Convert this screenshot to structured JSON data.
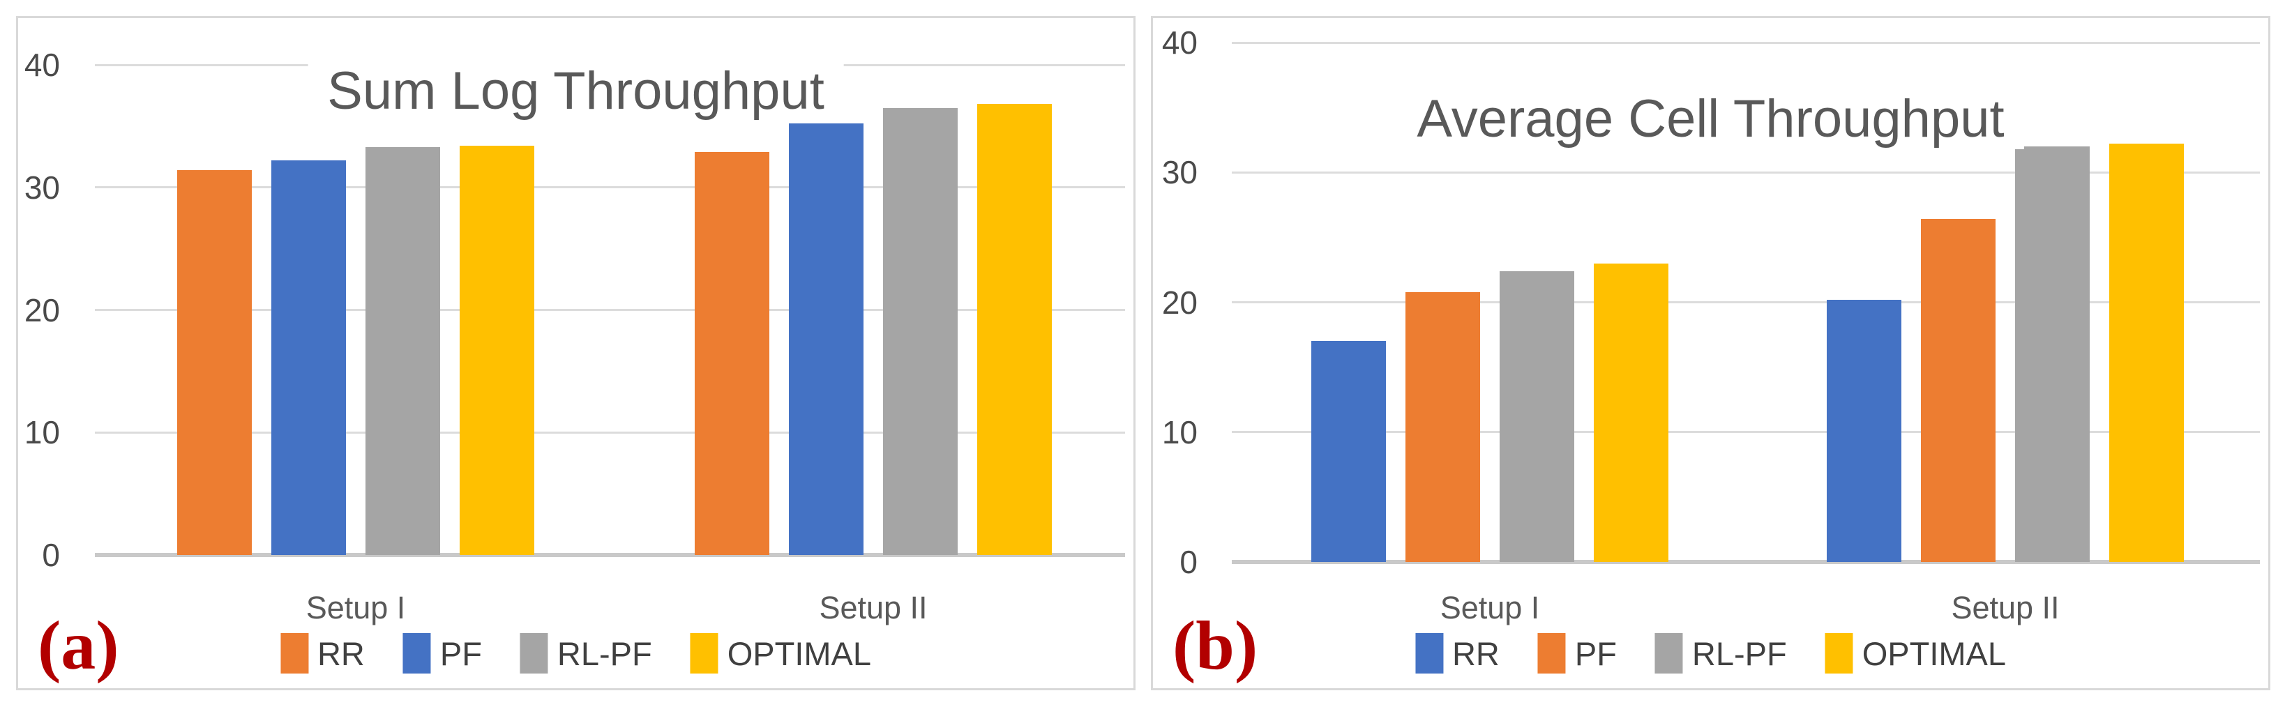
{
  "figure": {
    "background": "#FFFFFF",
    "style": {
      "title_color": "#595959",
      "tick_color": "#4A4A4A",
      "category_color": "#595959",
      "legend_text_color": "#404040",
      "gridline_color": "#DCDCDC",
      "axis_line_color": "#C9C9C9",
      "panel_border_color": "#D9D9D9",
      "panel_label_color": "#B20000"
    }
  },
  "chart_data": [
    {
      "type": "bar",
      "panel_label": "(a)",
      "title": "Sum Log Throughput",
      "categories": [
        "Setup I",
        "Setup II"
      ],
      "series": [
        {
          "name": "RR",
          "color": "#ED7D31",
          "values": [
            31.4,
            32.9
          ]
        },
        {
          "name": "PF",
          "color": "#4472C4",
          "values": [
            32.2,
            35.2
          ]
        },
        {
          "name": "RL-PF",
          "color": "#A5A5A5",
          "values": [
            33.3,
            36.5
          ]
        },
        {
          "name": "OPTIMAL",
          "color": "#FFC000",
          "values": [
            33.4,
            36.8
          ]
        }
      ],
      "xlabel": "",
      "ylabel": "",
      "ylim": [
        0,
        40
      ],
      "yticks": [
        0,
        10,
        20,
        30,
        40
      ],
      "grid": true,
      "legend_position": "bottom"
    },
    {
      "type": "bar",
      "panel_label": "(b)",
      "title": "Average Cell Throughput",
      "categories": [
        "Setup I",
        "Setup II"
      ],
      "series": [
        {
          "name": "RR",
          "color": "#4472C4",
          "values": [
            17.0,
            20.2
          ]
        },
        {
          "name": "PF",
          "color": "#ED7D31",
          "values": [
            20.8,
            26.4
          ]
        },
        {
          "name": "RL-PF",
          "color": "#A5A5A5",
          "values": [
            22.4,
            32.0
          ]
        },
        {
          "name": "OPTIMAL",
          "color": "#FFC000",
          "values": [
            23.0,
            32.2
          ]
        }
      ],
      "xlabel": "",
      "ylabel": "",
      "ylim": [
        0,
        40
      ],
      "yticks": [
        0,
        10,
        20,
        30,
        40
      ],
      "grid": true,
      "legend_position": "bottom"
    }
  ]
}
